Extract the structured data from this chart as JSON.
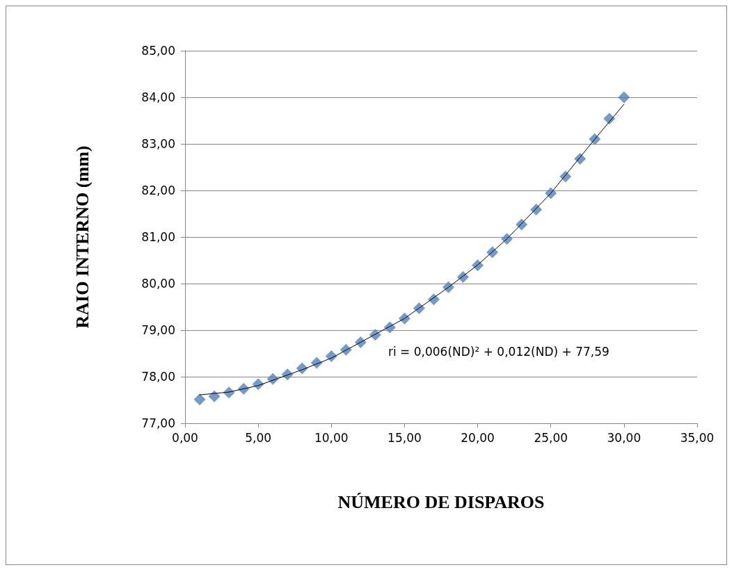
{
  "chart_data": {
    "type": "scatter",
    "xlabel": "NÚMERO DE DISPAROS",
    "ylabel": "RAIO INTERNO (mm)",
    "annotations": [
      "ri = 0,006(ND)² + 0,012(ND) + 77,59"
    ],
    "xlim": [
      0,
      35
    ],
    "xticks": [
      {
        "value": 0,
        "label": "0,00"
      },
      {
        "value": 5,
        "label": "5,00"
      },
      {
        "value": 10,
        "label": "10,00"
      },
      {
        "value": 15,
        "label": "15,00"
      },
      {
        "value": 20,
        "label": "20,00"
      },
      {
        "value": 25,
        "label": "25,00"
      },
      {
        "value": 30,
        "label": "30,00"
      },
      {
        "value": 35,
        "label": "35,00"
      }
    ],
    "ylim": [
      77,
      85
    ],
    "yticks": [
      {
        "value": 77,
        "label": "77,00"
      },
      {
        "value": 78,
        "label": "78,00"
      },
      {
        "value": 79,
        "label": "79,00"
      },
      {
        "value": 80,
        "label": "80,00"
      },
      {
        "value": 81,
        "label": "81,00"
      },
      {
        "value": 82,
        "label": "82,00"
      },
      {
        "value": 83,
        "label": "83,00"
      },
      {
        "value": 84,
        "label": "84,00"
      },
      {
        "value": 85,
        "label": "85,00"
      }
    ],
    "grid": "y",
    "marker": "diamond",
    "series": [
      {
        "color": "#4f81bd",
        "x": [
          1,
          2,
          3,
          4,
          5,
          6,
          7,
          8,
          9,
          10,
          11,
          12,
          13,
          14,
          15,
          16,
          17,
          18,
          19,
          20,
          21,
          22,
          23,
          24,
          25,
          26,
          27,
          28,
          29,
          30
        ],
        "values": [
          77.51,
          77.58,
          77.66,
          77.74,
          77.84,
          77.95,
          78.05,
          78.18,
          78.3,
          78.44,
          78.58,
          78.74,
          78.9,
          79.06,
          79.25,
          79.47,
          79.66,
          79.92,
          80.14,
          80.39,
          80.67,
          80.96,
          81.27,
          81.59,
          81.94,
          82.3,
          82.68,
          83.1,
          83.54,
          84.0
        ]
      },
      {
        "type": "line",
        "color": "#000000",
        "marker": "none",
        "line_style": "solid",
        "x": [
          1,
          3,
          5,
          8,
          10,
          12,
          15,
          18,
          20,
          22,
          25,
          28,
          30
        ],
        "values": [
          77.61,
          77.67,
          77.81,
          78.15,
          78.4,
          78.74,
          79.25,
          79.92,
          80.4,
          80.96,
          81.94,
          83.1,
          83.85
        ]
      }
    ]
  }
}
